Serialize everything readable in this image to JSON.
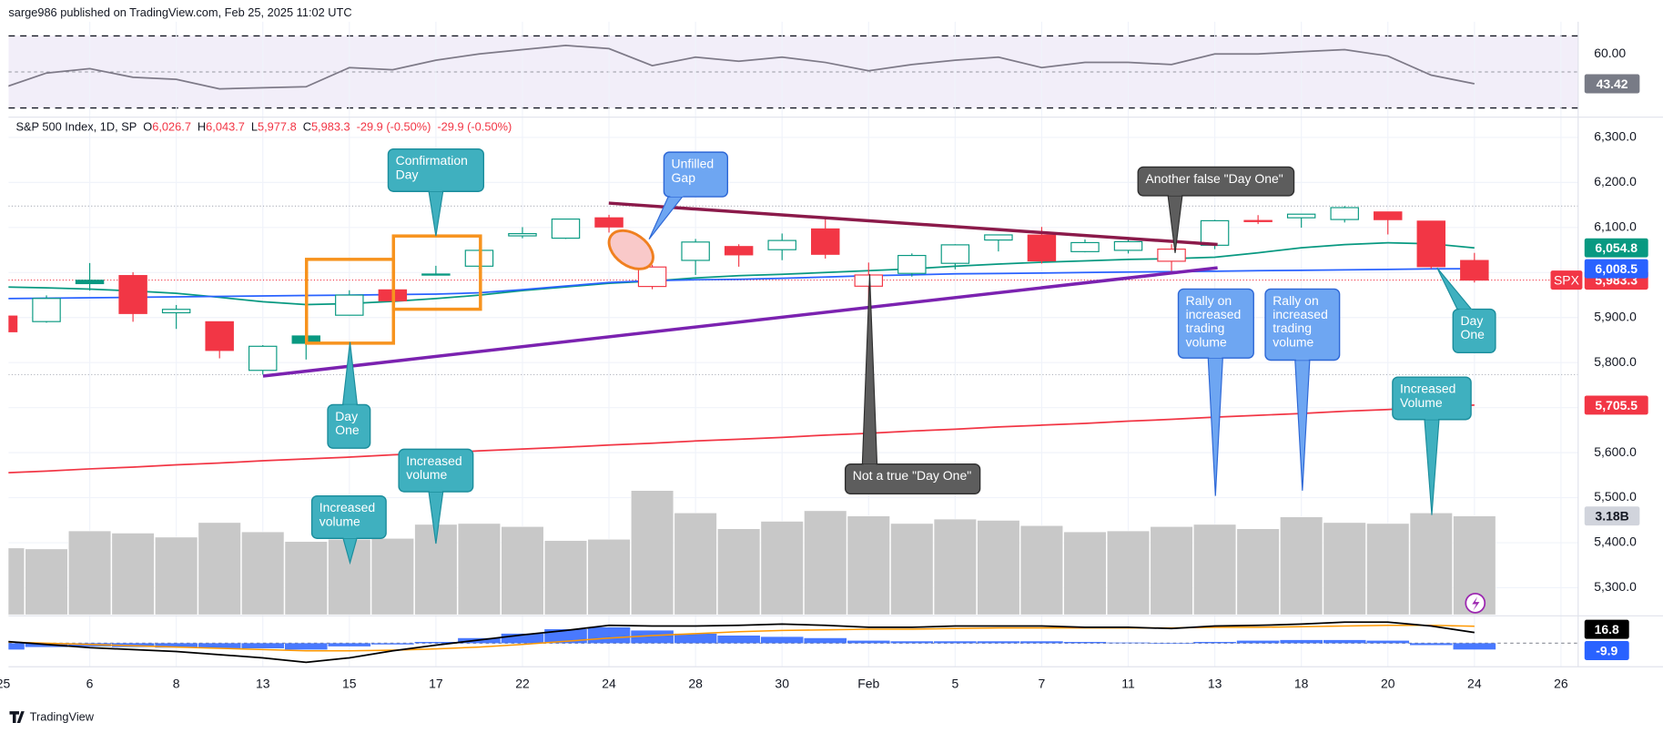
{
  "header": {
    "publisher": "sarge986 published on TradingView.com, Feb 25, 2025 11:02 UTC",
    "logo": "TradingView"
  },
  "chart_data": [
    {
      "type": "rsi",
      "ylim": [
        29,
        72
      ],
      "yticks": [
        {
          "value": 60,
          "label": "60.00"
        }
      ],
      "levels": [
        70,
        50,
        30
      ],
      "color": "#7e7a88",
      "values": [
        41.2,
        49.4,
        51.8,
        47,
        45.9,
        40.6,
        41.2,
        41.8,
        52.4,
        51.2,
        56.5,
        60,
        62.4,
        64.7,
        62.9,
        53.5,
        58.2,
        55.9,
        58.2,
        55.3,
        50.6,
        54.1,
        56.5,
        58.2,
        52.4,
        55.3,
        55.3,
        54.1,
        60,
        60,
        61.2,
        62.4,
        58.8,
        48.2,
        43.42,
        null,
        null
      ],
      "value_labels": [
        null,
        null,
        null,
        null,
        null,
        null,
        null,
        null,
        null,
        null,
        null,
        null,
        null,
        null,
        null,
        null,
        null,
        null,
        null,
        null,
        null,
        null,
        null,
        null,
        null,
        null,
        null,
        null,
        null,
        null,
        null,
        null,
        null,
        null,
        "43.42",
        null,
        null
      ]
    },
    {
      "type": "candlestick",
      "title": "S&P 500 Index, 1D, SP",
      "symbol": "SPX",
      "ohlc_legend": [
        {
          "key": "O",
          "value": "6,026.7"
        },
        {
          "key": "H",
          "value": "6,043.7"
        },
        {
          "key": "L",
          "value": "5,977.8"
        },
        {
          "key": "C",
          "value": "5,983.3"
        }
      ],
      "change": [
        "-29.9 (-0.50%)",
        "-29.9 (-0.50%)"
      ],
      "categories": [
        "25",
        null,
        "6",
        null,
        "8",
        null,
        "13",
        null,
        "15",
        null,
        "17",
        null,
        "22",
        null,
        "24",
        null,
        "28",
        null,
        "30",
        null,
        "Feb",
        null,
        "5",
        null,
        "7",
        null,
        "11",
        null,
        "13",
        null,
        "18",
        null,
        "20",
        null,
        "24",
        null,
        "26"
      ],
      "open": [
        5903.26,
        5891.07,
        5982.81,
        5993.26,
        5910.66,
        5890.66,
        5782.76,
        5859.11,
        5905.21,
        5961.48,
        5995.62,
        6014.12,
        6081.39,
        6076.32,
        6121.43,
        5969.04,
        6026.97,
        6057.7,
        6050.75,
        6096.79,
        5969.65,
        5998.14,
        6020.45,
        6072.22,
        6083.13,
        6046.4,
        6049.32,
        6025.08,
        6060.59,
        6115.52,
        6121.6,
        6117.76,
        6134.5,
        6114.1,
        6026.69,
        null,
        null
      ],
      "high": [
        5935.09,
        5949.34,
        6021.04,
        6000.68,
        5927.89,
        5890.66,
        5838.81,
        5871.23,
        5960.61,
        5964.69,
        6014.95,
        6051.51,
        6100.81,
        6118.73,
        6128.18,
        6017.17,
        6074.54,
        6062.83,
        6086.64,
        6120.91,
        6022.13,
        6042.48,
        6062.86,
        6084.03,
        6101.28,
        6073.38,
        6076.28,
        6063,
        6116.91,
        6127.47,
        6129.63,
        6147.43,
        6134.5,
        6114.82,
        6043.65,
        null,
        null
      ],
      "low": [
        5829.53,
        5888.66,
        5960.01,
        5890.68,
        5874.78,
        5809.44,
        5773.31,
        5806.82,
        5905.21,
        5930.73,
        5995.62,
        6006.88,
        6076.13,
        6074.67,
        6088.74,
        5962.92,
        5994.63,
        6012.96,
        6027.46,
        6030.93,
        5923.93,
        5990.87,
        6007.06,
        6046.83,
        6019.96,
        6044.84,
        6042.34,
        6003,
        6051.95,
        6107.62,
        6099.51,
        6111.15,
        6084.59,
        6008.56,
        5977.83,
        null,
        null
      ],
      "close": [
        5868.55,
        5942.47,
        5975.38,
        5909.03,
        5918.25,
        5827.04,
        5836.22,
        5842.91,
        5949.91,
        5937.34,
        5996.66,
        6049.24,
        6086.37,
        6118.71,
        6101.24,
        6012.28,
        6067.7,
        6039.31,
        6071.17,
        6040.53,
        5994.57,
        6037.88,
        6061.48,
        6083.57,
        6025.99,
        6066.44,
        6068.5,
        6051.97,
        6115.07,
        6114.63,
        6129.58,
        6144.15,
        6117.52,
        6013.13,
        5983.25,
        null,
        null
      ],
      "close_labels": [
        null,
        null,
        null,
        null,
        null,
        null,
        null,
        null,
        null,
        null,
        null,
        null,
        null,
        null,
        null,
        null,
        null,
        null,
        null,
        null,
        null,
        null,
        null,
        null,
        null,
        null,
        null,
        null,
        null,
        null,
        null,
        null,
        null,
        null,
        "5,983.3",
        null,
        null
      ],
      "up_color": "#089981",
      "down_color": "#f23645",
      "ylim": [
        5240,
        6345
      ],
      "yticks": [
        {
          "value": 5300,
          "label": "5,300.0"
        },
        {
          "value": 5400,
          "label": "5,400.0"
        },
        {
          "value": 5500,
          "label": "5,500.0"
        },
        {
          "value": 5600,
          "label": "5,600.0"
        },
        {
          "value": 5700,
          "label": "5,700.0"
        },
        {
          "value": 5800,
          "label": "5,800.0"
        },
        {
          "value": 5900,
          "label": "5,900.0"
        },
        {
          "value": 6000,
          "label": "6,000.0"
        },
        {
          "value": 6100,
          "label": "6,100.0"
        },
        {
          "value": 6200,
          "label": "6,200.0"
        },
        {
          "value": 6300,
          "label": "6,300.0"
        }
      ],
      "grid": true,
      "hlines": [
        6147.43,
        5773.31
      ],
      "overlays": [
        {
          "color": "#089981",
          "values": [
            5968,
            5966,
            5963,
            5959,
            5954,
            5945,
            5935,
            5929,
            5931,
            5936,
            5942,
            5950,
            5960,
            5968,
            5976,
            5981,
            5988,
            5993,
            5996,
            6000,
            6004,
            6008,
            6014,
            6019,
            6023,
            6026,
            6029,
            6031,
            6034,
            6044,
            6055,
            6062,
            6066,
            6064,
            6054.8,
            null,
            null
          ],
          "value_labels": [
            null,
            null,
            null,
            null,
            null,
            null,
            null,
            null,
            null,
            null,
            null,
            null,
            null,
            null,
            null,
            null,
            null,
            null,
            null,
            null,
            null,
            null,
            null,
            null,
            null,
            null,
            null,
            null,
            null,
            null,
            null,
            null,
            null,
            null,
            "6,054.8",
            null,
            null
          ]
        },
        {
          "color": "#2962ff",
          "values": [
            5942,
            5943,
            5944,
            5945,
            5946,
            5947,
            5948,
            5949,
            5950,
            5951,
            5952,
            5955,
            5962,
            5970,
            5978,
            5982,
            5984,
            5985,
            5987,
            5990,
            5993,
            5995,
            5997,
            5998,
            5999,
            6000,
            6001,
            6002,
            6003,
            6004,
            6005,
            6006,
            6007,
            6008,
            6008.5,
            null,
            null
          ],
          "value_labels": [
            null,
            null,
            null,
            null,
            null,
            null,
            null,
            null,
            null,
            null,
            null,
            null,
            null,
            null,
            null,
            null,
            null,
            null,
            null,
            null,
            null,
            null,
            null,
            null,
            null,
            null,
            null,
            null,
            null,
            null,
            null,
            null,
            null,
            null,
            "6,008.5",
            null,
            null
          ]
        },
        {
          "color": "#f23645",
          "values": [
            5555,
            5559,
            5564,
            5568,
            5573,
            5577,
            5582,
            5586,
            5590,
            5595,
            5599,
            5604,
            5608,
            5612,
            5617,
            5621,
            5626,
            5630,
            5634,
            5639,
            5643,
            5648,
            5652,
            5657,
            5661,
            5665,
            5670,
            5674,
            5679,
            5683,
            5687,
            5692,
            5696,
            5701,
            5705.5,
            null,
            null
          ],
          "value_labels": [
            null,
            null,
            null,
            null,
            null,
            null,
            null,
            null,
            null,
            null,
            null,
            null,
            null,
            null,
            null,
            null,
            null,
            null,
            null,
            null,
            null,
            null,
            null,
            null,
            null,
            null,
            null,
            null,
            null,
            null,
            null,
            null,
            null,
            null,
            "5,705.5",
            null,
            null
          ]
        }
      ],
      "volume": {
        "color": "#c8c8c8",
        "ylim": [
          0,
          5.5
        ],
        "values": [
          2.15,
          2.12,
          2.7,
          2.63,
          2.5,
          2.97,
          2.67,
          2.36,
          2.43,
          2.46,
          2.91,
          2.94,
          2.84,
          2.39,
          2.43,
          4.0,
          3.28,
          2.77,
          3.01,
          3.35,
          3.18,
          2.94,
          3.08,
          3.04,
          2.87,
          2.67,
          2.7,
          2.84,
          2.91,
          2.77,
          3.15,
          2.97,
          2.94,
          3.28,
          3.18,
          null,
          null
        ],
        "value_labels": [
          null,
          null,
          null,
          null,
          null,
          null,
          null,
          null,
          null,
          null,
          null,
          null,
          null,
          null,
          null,
          null,
          null,
          null,
          null,
          null,
          null,
          null,
          null,
          null,
          null,
          null,
          null,
          null,
          null,
          null,
          null,
          null,
          null,
          null,
          "3.18B",
          null,
          null
        ]
      },
      "annotations": [
        {
          "text": "Confirmation Day"
        },
        {
          "text": "Unfilled Gap"
        },
        {
          "text": "Another false \"Day One\""
        },
        {
          "text": "Day One"
        },
        {
          "text": "Increased volume"
        },
        {
          "text": "Increased volume"
        },
        {
          "text": "Not a true \"Day One\""
        },
        {
          "text": "Rally on increased trading volume"
        },
        {
          "text": "Rally on increased trading volume"
        },
        {
          "text": "Day One"
        },
        {
          "text": "Increased Volume"
        }
      ]
    },
    {
      "type": "macd",
      "ylim": [
        -32,
        43
      ],
      "zero": 0,
      "macd": {
        "color": "#000000",
        "values": [
          3,
          -2,
          -7,
          -10,
          -13,
          -18,
          -23,
          -30,
          -23,
          -12,
          -3,
          5,
          13,
          20,
          28,
          27,
          27,
          28,
          30,
          28,
          25,
          25,
          27,
          27,
          27,
          25,
          25,
          23,
          27,
          28,
          30,
          33,
          33,
          27,
          16.8,
          null,
          null
        ],
        "value_labels": [
          null,
          null,
          null,
          null,
          null,
          null,
          null,
          null,
          null,
          null,
          null,
          null,
          null,
          null,
          null,
          null,
          null,
          null,
          null,
          null,
          null,
          null,
          null,
          null,
          null,
          null,
          null,
          null,
          null,
          null,
          null,
          null,
          null,
          null,
          "16.8",
          null,
          null
        ]
      },
      "signal": {
        "color": "#ff9800",
        "values": [
          2,
          0,
          -2,
          -4,
          -6,
          -8,
          -10,
          -12,
          -12,
          -11,
          -9,
          -6,
          -2,
          3,
          8,
          12,
          15,
          18,
          20,
          21,
          22,
          22,
          23,
          24,
          24,
          24,
          24,
          24,
          25,
          25,
          26,
          27,
          28,
          28,
          26.7,
          null,
          null
        ]
      },
      "histogram": {
        "color": "#2962ff",
        "values": [
          -10,
          -6,
          -5,
          -6,
          -7,
          -8,
          -8,
          -10,
          -5,
          -2,
          2,
          8,
          15,
          22,
          25,
          20,
          15,
          12,
          10,
          8,
          4,
          3,
          3,
          3,
          3,
          2,
          1,
          -1,
          2,
          4,
          5,
          5,
          4,
          -3,
          -9.9,
          null,
          null
        ],
        "value_labels": [
          null,
          null,
          null,
          null,
          null,
          null,
          null,
          null,
          null,
          null,
          null,
          null,
          null,
          null,
          null,
          null,
          null,
          null,
          null,
          null,
          null,
          null,
          null,
          null,
          null,
          null,
          null,
          null,
          null,
          null,
          null,
          null,
          null,
          null,
          "-9.9",
          null,
          null
        ]
      }
    }
  ]
}
